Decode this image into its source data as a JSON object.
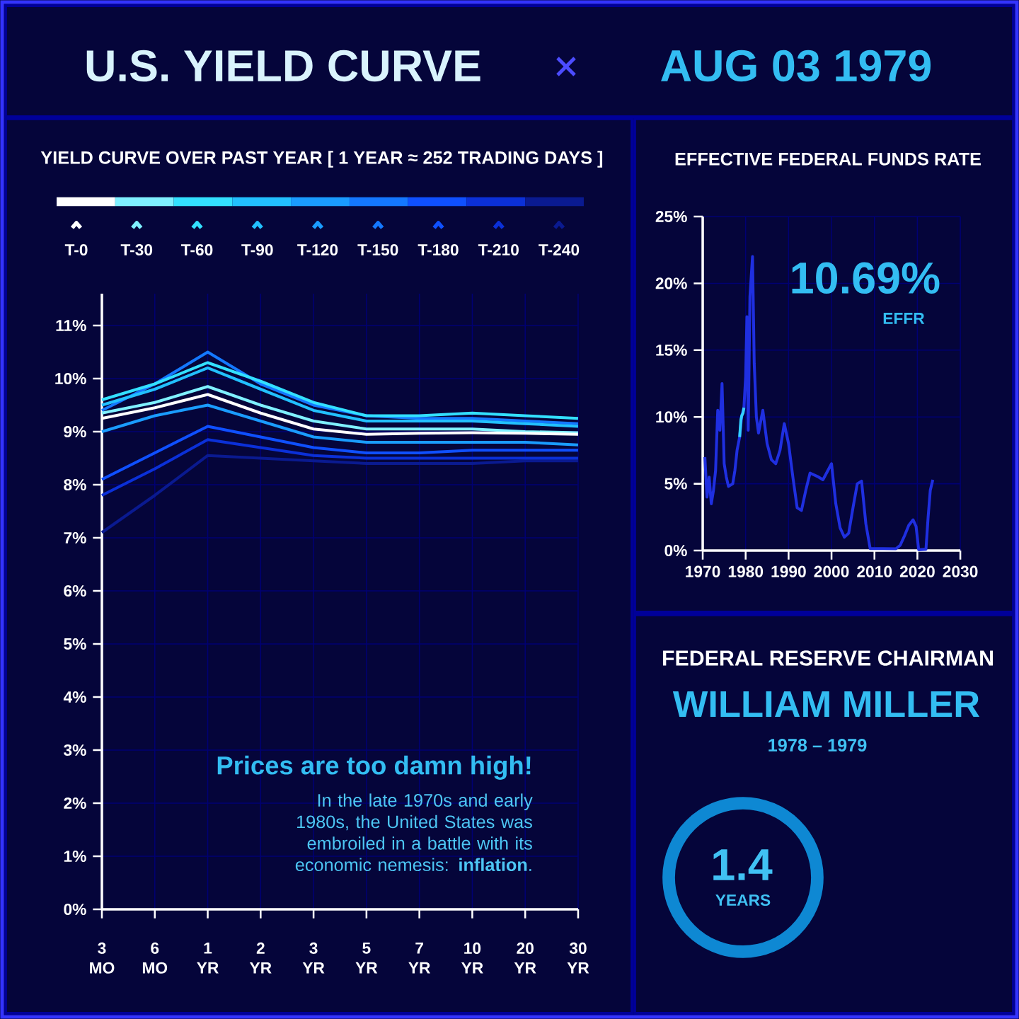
{
  "chart_data": [
    {
      "type": "other",
      "title": "U.S. YIELD CURVE",
      "subtitle": "AUG 03 1979"
    },
    {
      "type": "line",
      "title": "YIELD CURVE OVER PAST YEAR [ 1 YEAR ≈ 252 TRADING DAYS ]",
      "categories": [
        "3 MO",
        "6 MO",
        "1 YR",
        "2 YR",
        "3 YR",
        "5 YR",
        "7 YR",
        "10 YR",
        "20 YR",
        "30 YR"
      ],
      "series": [
        {
          "name": "T-240",
          "color": "#0a1a90",
          "values": [
            7.1,
            7.8,
            8.55,
            8.5,
            8.45,
            8.4,
            8.4,
            8.4,
            8.45,
            8.45
          ]
        },
        {
          "name": "T-210",
          "color": "#0b30d8",
          "values": [
            7.8,
            8.3,
            8.85,
            8.7,
            8.55,
            8.5,
            8.5,
            8.5,
            8.5,
            8.5
          ]
        },
        {
          "name": "T-180",
          "color": "#0f50ff",
          "values": [
            8.1,
            8.6,
            9.1,
            8.9,
            8.7,
            8.6,
            8.6,
            8.65,
            8.65,
            8.65
          ]
        },
        {
          "name": "T-150",
          "color": "#1478ff",
          "values": [
            9.4,
            9.9,
            10.5,
            9.9,
            9.5,
            9.3,
            9.25,
            9.25,
            9.2,
            9.15
          ]
        },
        {
          "name": "T-120",
          "color": "#1a9cff",
          "values": [
            9.0,
            9.3,
            9.5,
            9.2,
            8.9,
            8.8,
            8.8,
            8.8,
            8.8,
            8.75
          ]
        },
        {
          "name": "T-90",
          "color": "#22c0ff",
          "values": [
            9.5,
            9.8,
            10.2,
            9.8,
            9.4,
            9.2,
            9.2,
            9.2,
            9.15,
            9.1
          ]
        },
        {
          "name": "T-60",
          "color": "#33e0ff",
          "values": [
            9.6,
            9.9,
            10.3,
            9.95,
            9.55,
            9.3,
            9.3,
            9.35,
            9.3,
            9.25
          ]
        },
        {
          "name": "T-30",
          "color": "#7ff0ff",
          "values": [
            9.35,
            9.55,
            9.85,
            9.5,
            9.2,
            9.05,
            9.05,
            9.05,
            9.0,
            8.98
          ]
        },
        {
          "name": "T-0",
          "color": "#ffffff",
          "values": [
            9.25,
            9.45,
            9.7,
            9.35,
            9.05,
            8.95,
            8.97,
            8.98,
            8.97,
            8.95
          ]
        }
      ],
      "ylim": [
        0,
        11.6
      ],
      "yticks": [
        {
          "value": 0,
          "label": "0%"
        },
        {
          "value": 1,
          "label": "1%"
        },
        {
          "value": 2,
          "label": "2%"
        },
        {
          "value": 3,
          "label": "3%"
        },
        {
          "value": 4,
          "label": "4%"
        },
        {
          "value": 5,
          "label": "5%"
        },
        {
          "value": 6,
          "label": "6%"
        },
        {
          "value": 7,
          "label": "7%"
        },
        {
          "value": 8,
          "label": "8%"
        },
        {
          "value": 9,
          "label": "9%"
        },
        {
          "value": 10,
          "label": "10%"
        },
        {
          "value": 11,
          "label": "11%"
        }
      ],
      "grid": true,
      "legend": "top",
      "annotations": [
        "Prices are too damn high!",
        "In the late 1970s and early 1980s, the United States was embroiled in a battle with its economic nemesis: **inflation**."
      ]
    },
    {
      "type": "line",
      "title": "EFFECTIVE FEDERAL FUNDS RATE",
      "series": [
        {
          "color": "#1f2fe0",
          "x": [
            1970.5,
            1971,
            1971.5,
            1972,
            1972.5,
            1973,
            1973.5,
            1974,
            1974.5,
            1975,
            1975.5,
            1976,
            1977,
            1977.5,
            1978,
            1978.6,
            1979.1,
            1979.6,
            1980,
            1980.3,
            1980.6,
            1981,
            1981.6,
            1982,
            1982.5,
            1983,
            1984,
            1985,
            1986,
            1987,
            1988,
            1989,
            1990,
            1991,
            1992,
            1993,
            1994,
            1995,
            1997,
            1998,
            2000,
            2001,
            2002,
            2003,
            2004,
            2005,
            2006,
            2007,
            2008,
            2009,
            2012,
            2015,
            2016,
            2017,
            2018,
            2019,
            2019.7,
            2020.3,
            2022,
            2022.5,
            2023,
            2023.6
          ],
          "values": [
            7,
            4,
            5.5,
            3.5,
            4.5,
            6,
            10.5,
            9,
            12.5,
            6.5,
            5.5,
            4.8,
            5,
            6,
            7.5,
            8.5,
            10.1,
            10.69,
            13,
            17.5,
            9,
            19,
            22,
            14,
            10,
            8.8,
            10.5,
            8,
            6.8,
            6.5,
            7.5,
            9.5,
            8,
            5.5,
            3.2,
            3,
            4.5,
            5.8,
            5.5,
            5.3,
            6.5,
            3.5,
            1.7,
            1.0,
            1.3,
            3.2,
            5.0,
            5.2,
            2,
            0.15,
            0.15,
            0.13,
            0.4,
            1.1,
            1.9,
            2.3,
            1.8,
            0.06,
            0.1,
            2.5,
            4.5,
            5.3
          ]
        },
        {
          "color": "#33d0ff",
          "x": [
            1978.6,
            1978.9,
            1979.1,
            1979.4,
            1979.6
          ],
          "values": [
            8.5,
            9.8,
            10.1,
            10.3,
            10.69
          ]
        }
      ],
      "xlim": [
        1970,
        2030
      ],
      "xticks": [
        1970,
        1980,
        1990,
        2000,
        2010,
        2020,
        2030
      ],
      "ylim": [
        0,
        25
      ],
      "yticks": [
        {
          "value": 0,
          "label": "0%"
        },
        {
          "value": 5,
          "label": "5%"
        },
        {
          "value": 10,
          "label": "10%"
        },
        {
          "value": 15,
          "label": "15%"
        },
        {
          "value": 20,
          "label": "20%"
        },
        {
          "value": 25,
          "label": "25%"
        }
      ],
      "grid": true,
      "annotations": [
        "10.69%",
        "EFFR"
      ]
    },
    {
      "type": "other",
      "title": "FEDERAL RESERVE CHAIRMAN",
      "subtitle": "WILLIAM MILLER",
      "annotations": [
        "1978 – 1979",
        "1.4",
        "YEARS"
      ]
    }
  ]
}
